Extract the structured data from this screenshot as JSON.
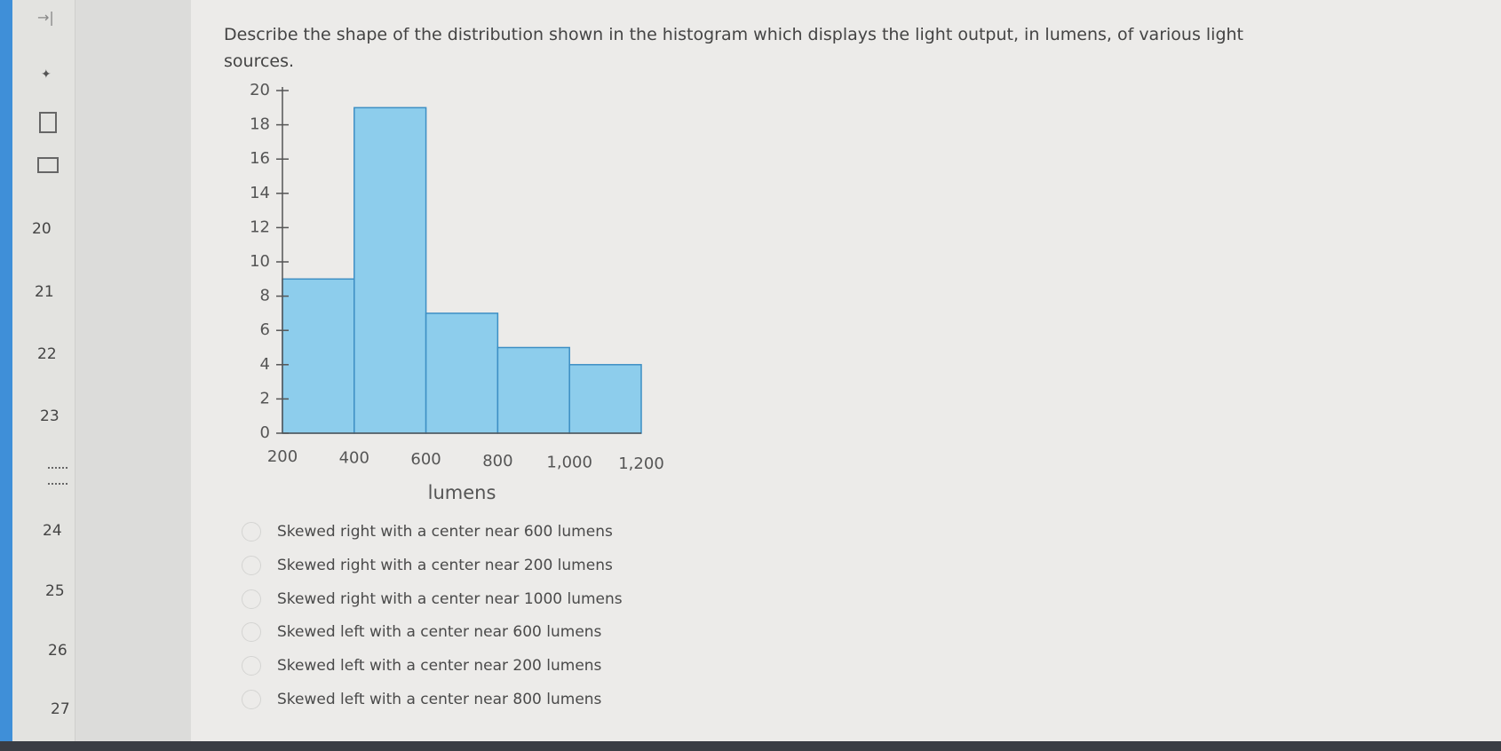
{
  "sidebar": {
    "questions": [
      "20",
      "21",
      "22",
      "23",
      "24",
      "25",
      "26",
      "27"
    ]
  },
  "question": "Describe the shape of the distribution shown in the histogram which displays the light output, in lumens, of various light sources.",
  "chart_data": {
    "type": "histogram",
    "bins": [
      200,
      400,
      600,
      800,
      1000,
      1200
    ],
    "values": [
      9,
      19,
      7,
      5,
      4
    ],
    "color": "#8dcdec",
    "xlabel": "lumens",
    "xlim": [
      200,
      1200
    ],
    "xticks": [
      200,
      400,
      600,
      800,
      {
        "value": 1000,
        "label": "1,000"
      },
      {
        "value": 1200,
        "label": "1,200"
      }
    ],
    "ylim": [
      0,
      20
    ],
    "yticks": [
      0,
      2,
      4,
      6,
      8,
      10,
      12,
      14,
      16,
      18,
      20
    ]
  },
  "options": [
    "Skewed right with a center near 600 lumens",
    "Skewed right with a center near 200 lumens",
    "Skewed right with a center near 1000 lumens",
    "Skewed left with a center near 600 lumens",
    "Skewed left with a center near 200 lumens",
    "Skewed left with a center near 800 lumens"
  ]
}
